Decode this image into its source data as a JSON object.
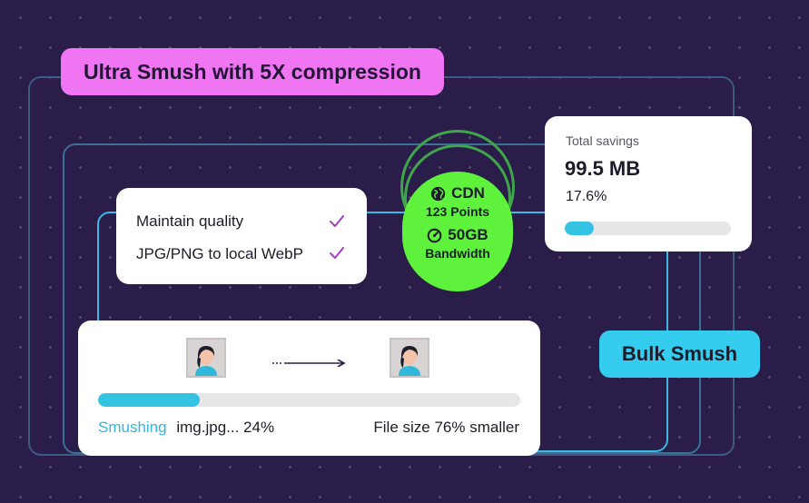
{
  "ultra_smush": {
    "label": "Ultra Smush with 5X compression",
    "color": "#f075f2"
  },
  "features": {
    "items": [
      {
        "label": "Maintain quality"
      },
      {
        "label": "JPG/PNG to local WebP"
      }
    ],
    "check_color": "#a23cc7"
  },
  "cdn": {
    "title": "CDN",
    "points": "123 Points",
    "bandwidth_value": "50GB",
    "bandwidth_label": "Bandwidth",
    "color": "#5ff23c",
    "globe_icon": "globe-icon",
    "gauge_icon": "gauge-icon"
  },
  "savings": {
    "label": "Total savings",
    "amount": "99.5 MB",
    "percent": "17.6%",
    "progress_fraction": 0.176
  },
  "bulk_smush": {
    "label": "Bulk Smush",
    "color": "#34cdf0"
  },
  "smushing": {
    "status_label": "Smushing",
    "file_status": "img.jpg... 24%",
    "result": "File size 76% smaller",
    "progress_fraction": 0.24,
    "arrow_icon": "arrow-right-icon",
    "accent": "#2fb8da"
  }
}
